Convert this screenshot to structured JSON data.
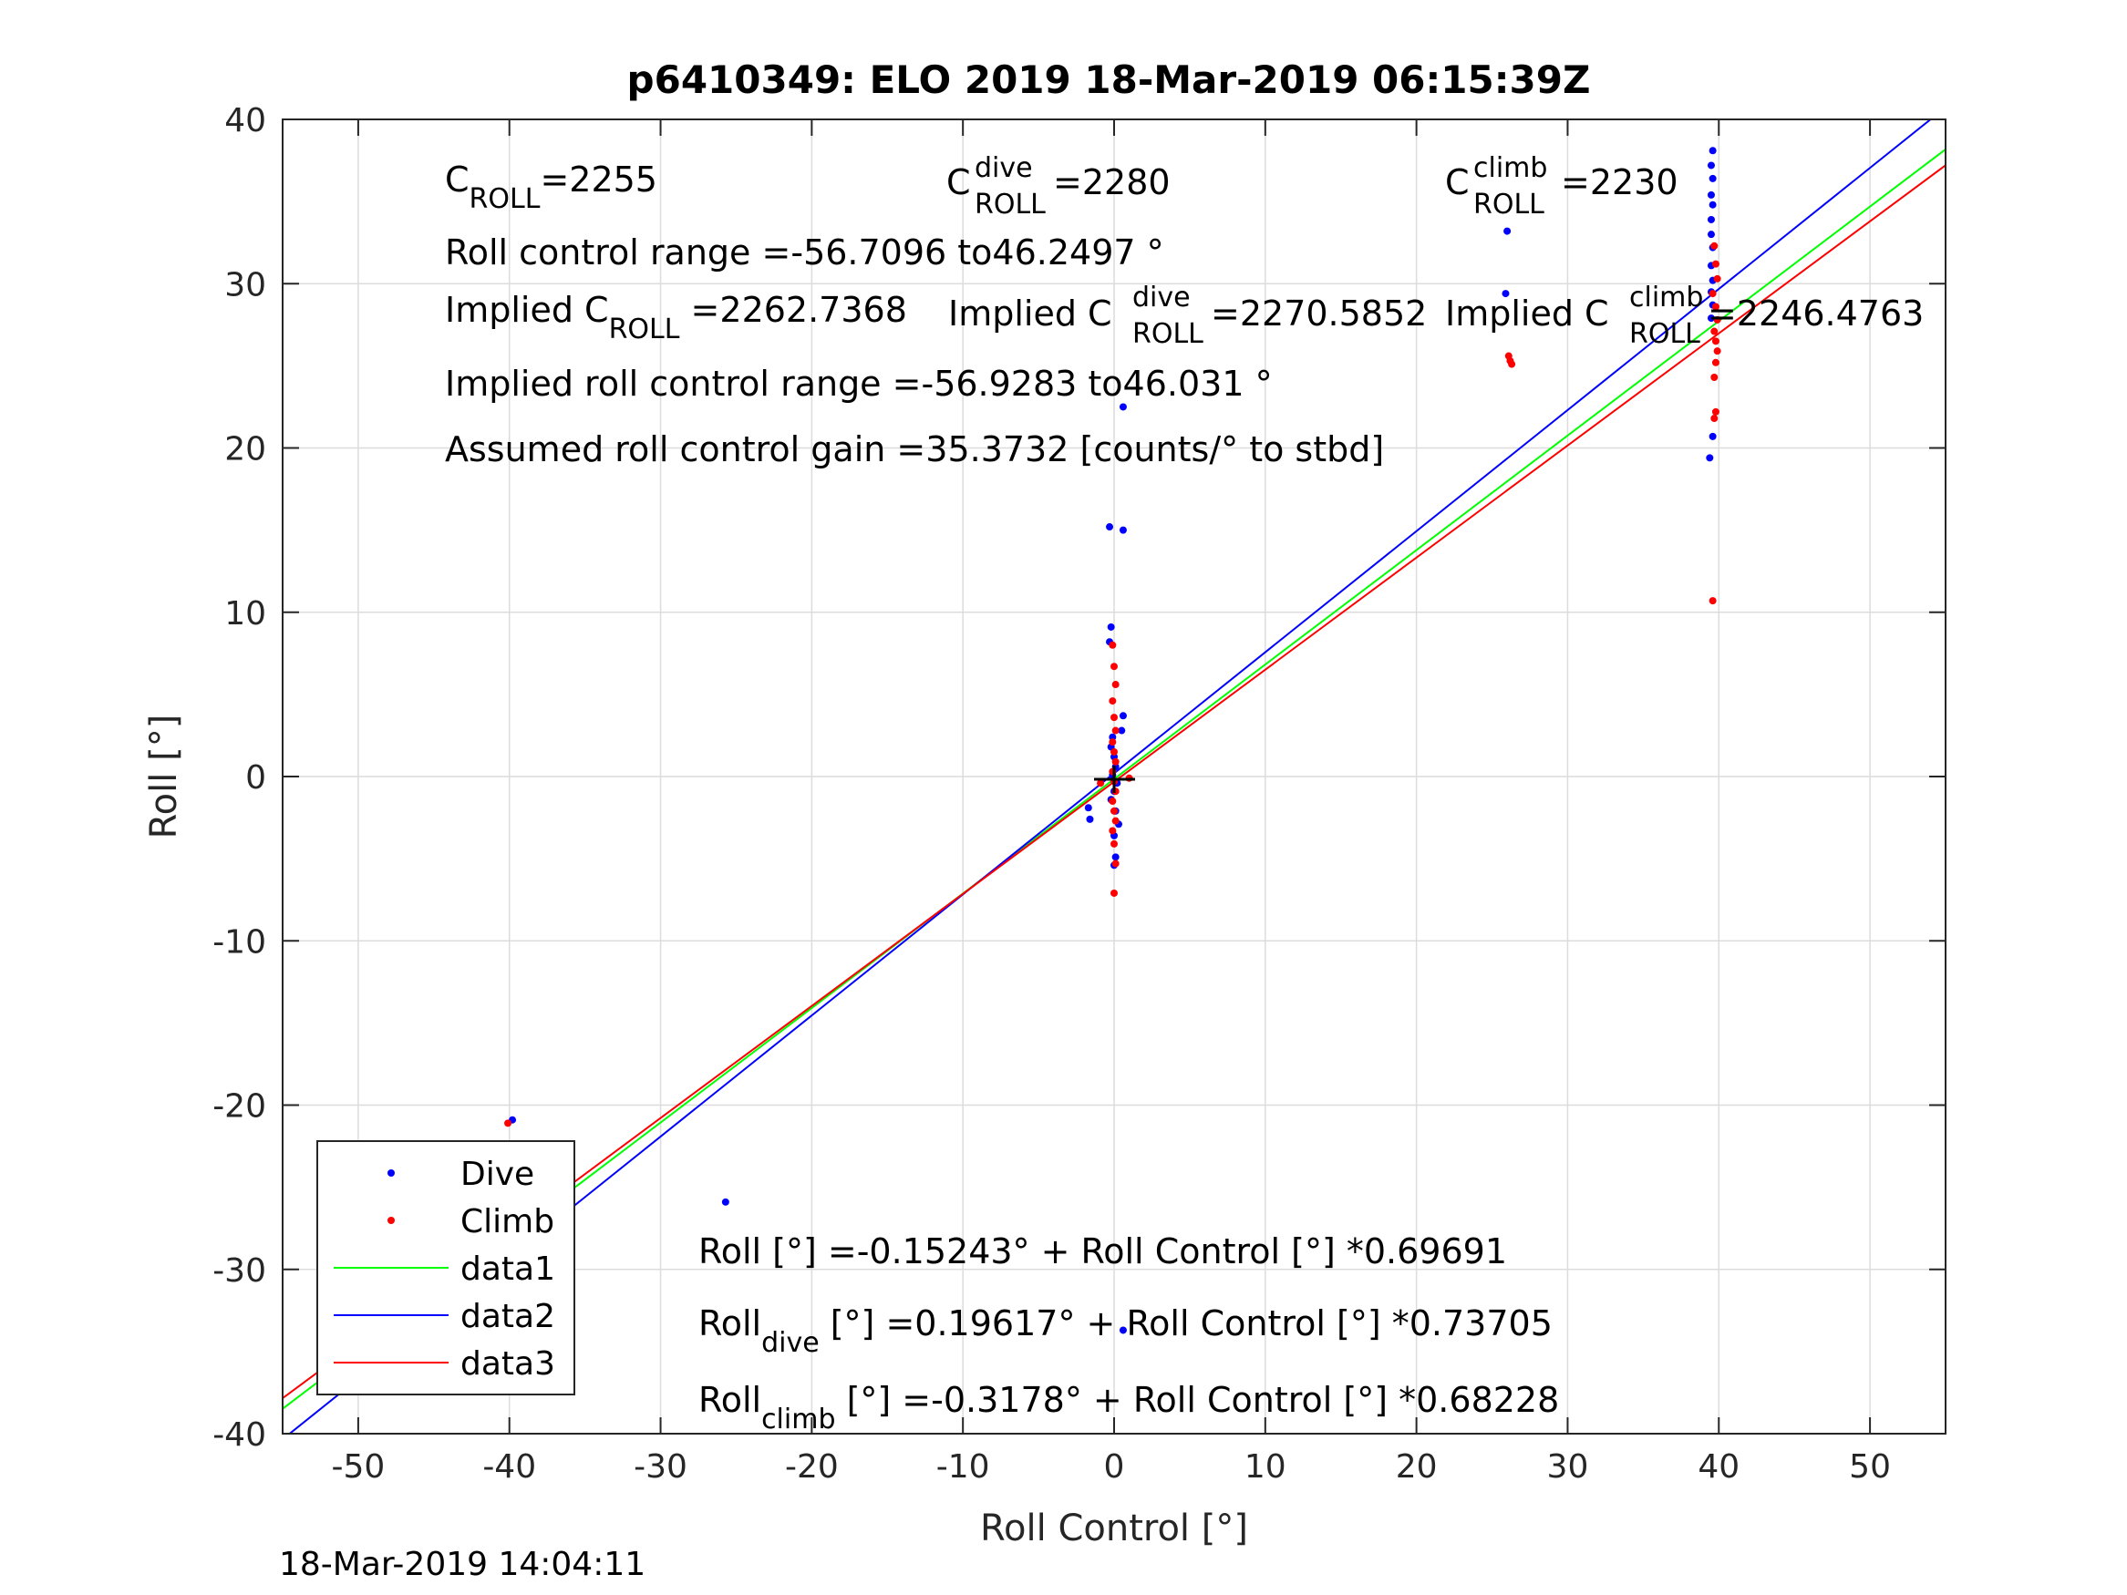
{
  "figure": {
    "title": "p6410349: ELO 2019 18-Mar-2019 06:15:39Z",
    "timestamp": "18-Mar-2019 14:04:11"
  },
  "annotations": {
    "croll_base": "C",
    "croll_sub": "ROLL",
    "croll_val": "=2255",
    "cdive_base": "C",
    "cdive_sup": "dive",
    "cdive_sub": "ROLL",
    "cdive_val": " =2280",
    "cclimb_base": "C",
    "cclimb_sup": "climb",
    "cclimb_sub": "ROLL",
    "cclimb_val": " =2230",
    "range_line": "Roll control range =-56.7096 to46.2497 °",
    "implied_pre": "Implied C",
    "implied_sub": "ROLL",
    "implied_val": " =2262.7368",
    "implied_dive_pre": "Implied C",
    "implied_dive_sup": "dive",
    "implied_dive_sub": "ROLL",
    "implied_dive_val": " =2270.5852",
    "implied_climb_pre": "Implied C",
    "implied_climb_sup": "climb",
    "implied_climb_sub": "ROLL",
    "implied_climb_val": " =2246.4763",
    "implied_range_line": "Implied roll control range =-56.9283 to46.031 °",
    "gain_line": "Assumed roll control gain =35.3732 [counts/° to stbd]",
    "fit_all": "Roll [°] =-0.15243° + Roll Control [°] *0.69691",
    "fit_dive_pre": "Roll",
    "fit_dive_sub": "dive",
    "fit_dive_rest": " [°] =0.19617° + Roll Control [°] *0.73705",
    "fit_climb_pre": "Roll",
    "fit_climb_sub": "climb",
    "fit_climb_rest": " [°] =-0.3178° + Roll Control [°] *0.68228"
  },
  "chart_data": {
    "type": "scatter",
    "xlabel": "Roll Control [°]",
    "ylabel": "Roll [°]",
    "xlim": [
      -55,
      55
    ],
    "ylim": [
      -40,
      40
    ],
    "xticks": [
      -50,
      -40,
      -30,
      -20,
      -10,
      0,
      10,
      20,
      30,
      40,
      50
    ],
    "yticks": [
      -40,
      -30,
      -20,
      -10,
      0,
      10,
      20,
      30,
      40
    ],
    "grid": true,
    "legend_position": "bottom-left",
    "series": [
      {
        "name": "Dive",
        "kind": "points",
        "color": "#0000ff",
        "points": [
          [
            -39.8,
            -20.9
          ],
          [
            -39.9,
            -24.5
          ],
          [
            -40.0,
            -25.6
          ],
          [
            -39.7,
            -26.2
          ],
          [
            -39.9,
            -26.8
          ],
          [
            -40.1,
            -27.3
          ],
          [
            -39.8,
            -27.9
          ],
          [
            -40.0,
            -28.4
          ],
          [
            -39.9,
            -29.0
          ],
          [
            -39.7,
            -29.3
          ],
          [
            -40.0,
            -29.8
          ],
          [
            -25.7,
            -25.9
          ],
          [
            -1.7,
            -1.9
          ],
          [
            -1.6,
            -2.6
          ],
          [
            -0.3,
            15.2
          ],
          [
            0.6,
            15.0
          ],
          [
            -0.2,
            9.1
          ],
          [
            -0.3,
            8.2
          ],
          [
            0.6,
            3.7
          ],
          [
            0.5,
            2.8
          ],
          [
            -0.1,
            2.4
          ],
          [
            -0.2,
            1.8
          ],
          [
            0.0,
            1.2
          ],
          [
            0.1,
            0.6
          ],
          [
            -0.1,
            0.1
          ],
          [
            0.2,
            -0.4
          ],
          [
            0.0,
            -0.9
          ],
          [
            -0.2,
            -1.4
          ],
          [
            0.1,
            -2.1
          ],
          [
            0.3,
            -2.9
          ],
          [
            0.0,
            -3.6
          ],
          [
            0.1,
            -4.9
          ],
          [
            0.0,
            -5.4
          ],
          [
            0.6,
            22.5
          ],
          [
            0.6,
            -33.7
          ],
          [
            26.0,
            33.2
          ],
          [
            25.9,
            29.4
          ],
          [
            39.6,
            38.1
          ],
          [
            39.5,
            37.2
          ],
          [
            39.6,
            36.4
          ],
          [
            39.5,
            35.4
          ],
          [
            39.6,
            34.8
          ],
          [
            39.5,
            33.9
          ],
          [
            39.5,
            33.0
          ],
          [
            39.6,
            32.2
          ],
          [
            39.5,
            31.1
          ],
          [
            39.6,
            30.2
          ],
          [
            39.5,
            29.5
          ],
          [
            39.6,
            28.7
          ],
          [
            39.5,
            27.9
          ],
          [
            39.6,
            20.7
          ],
          [
            39.4,
            19.4
          ]
        ]
      },
      {
        "name": "Climb",
        "kind": "points",
        "color": "#ff0000",
        "points": [
          [
            -40.1,
            -21.1
          ],
          [
            -40.0,
            -25.3
          ],
          [
            -39.9,
            -26.0
          ],
          [
            -40.1,
            -26.7
          ],
          [
            -40.0,
            -27.4
          ],
          [
            -39.9,
            -28.0
          ],
          [
            -40.1,
            -28.6
          ],
          [
            -40.0,
            -29.1
          ],
          [
            -39.9,
            -29.7
          ],
          [
            -40.1,
            -30.2
          ],
          [
            -40.0,
            -30.6
          ],
          [
            -0.1,
            8.0
          ],
          [
            0.0,
            6.7
          ],
          [
            0.1,
            5.6
          ],
          [
            -0.1,
            4.6
          ],
          [
            0.0,
            3.6
          ],
          [
            0.1,
            2.8
          ],
          [
            -0.1,
            2.1
          ],
          [
            0.0,
            1.5
          ],
          [
            0.1,
            0.9
          ],
          [
            -0.1,
            0.3
          ],
          [
            0.0,
            -0.3
          ],
          [
            0.1,
            -0.9
          ],
          [
            -0.1,
            -1.5
          ],
          [
            0.0,
            -2.1
          ],
          [
            0.1,
            -2.7
          ],
          [
            -0.1,
            -3.3
          ],
          [
            0.0,
            -4.1
          ],
          [
            0.1,
            -5.3
          ],
          [
            0.0,
            -7.1
          ],
          [
            -0.9,
            -0.4
          ],
          [
            1.0,
            -0.1
          ],
          [
            26.1,
            25.6
          ],
          [
            26.3,
            25.1
          ],
          [
            26.2,
            25.3
          ],
          [
            39.7,
            32.3
          ],
          [
            39.8,
            31.2
          ],
          [
            39.9,
            30.3
          ],
          [
            39.6,
            29.4
          ],
          [
            39.8,
            28.6
          ],
          [
            39.9,
            27.8
          ],
          [
            39.7,
            27.1
          ],
          [
            39.8,
            26.5
          ],
          [
            39.9,
            25.9
          ],
          [
            39.8,
            25.2
          ],
          [
            39.7,
            24.3
          ],
          [
            39.8,
            22.2
          ],
          [
            39.7,
            21.8
          ],
          [
            39.6,
            10.7
          ]
        ]
      },
      {
        "name": "data1",
        "kind": "line",
        "color": "#00ff00",
        "intercept": -0.15243,
        "slope": 0.69691
      },
      {
        "name": "data2",
        "kind": "line",
        "color": "#0000ff",
        "intercept": 0.19617,
        "slope": 0.73705
      },
      {
        "name": "data3",
        "kind": "line",
        "color": "#ff0000",
        "intercept": -0.3178,
        "slope": 0.68228
      }
    ]
  }
}
